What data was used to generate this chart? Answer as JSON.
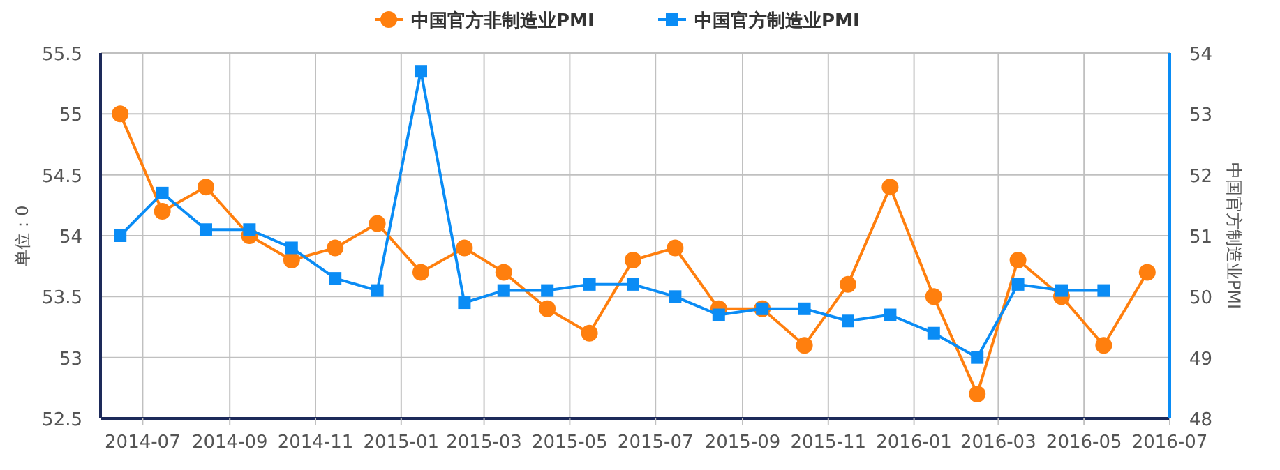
{
  "chart_data": {
    "type": "line",
    "ylabel": "单位：0",
    "y2label": "中国官方制造业PMI",
    "x": [
      "2014-06-15",
      "2014-07-15",
      "2014-08-15",
      "2014-09-15",
      "2014-10-15",
      "2014-11-15",
      "2014-12-15",
      "2015-01-15",
      "2015-02-15",
      "2015-03-15",
      "2015-04-15",
      "2015-05-15",
      "2015-06-15",
      "2015-07-15",
      "2015-08-15",
      "2015-09-15",
      "2015-10-15",
      "2015-11-15",
      "2015-12-15",
      "2016-01-15",
      "2016-02-15",
      "2016-03-15",
      "2016-04-15",
      "2016-05-15",
      "2016-06-15"
    ],
    "xlim": [
      "2014-06",
      "2016-07"
    ],
    "xticks": [
      {
        "value": "2014-07",
        "label": "2014-07"
      },
      {
        "value": "2014-09",
        "label": "2014-09"
      },
      {
        "value": "2014-11",
        "label": "2014-11"
      },
      {
        "value": "2015-01",
        "label": "2015-01"
      },
      {
        "value": "2015-03",
        "label": "2015-03"
      },
      {
        "value": "2015-05",
        "label": "2015-05"
      },
      {
        "value": "2015-07",
        "label": "2015-07"
      },
      {
        "value": "2015-09",
        "label": "2015-09"
      },
      {
        "value": "2015-11",
        "label": "2015-11"
      },
      {
        "value": "2016-01",
        "label": "2016-01"
      },
      {
        "value": "2016-03",
        "label": "2016-03"
      },
      {
        "value": "2016-05",
        "label": "2016-05"
      },
      {
        "value": "2016-07",
        "label": "2016-07"
      }
    ],
    "ylim": [
      52.5,
      55.5
    ],
    "yticks": [
      52.5,
      53,
      53.5,
      54,
      54.5,
      55,
      55.5
    ],
    "y2lim": [
      48,
      54
    ],
    "y2ticks": [
      48,
      49,
      50,
      51,
      52,
      53,
      54
    ],
    "grid": true,
    "legend": "top",
    "series": [
      {
        "name": "中国官方非制造业PMI",
        "color": "#ff7f0e",
        "marker": "circle",
        "values": [
          55.0,
          54.2,
          54.4,
          54.0,
          53.8,
          53.9,
          54.1,
          53.7,
          53.9,
          53.7,
          53.4,
          53.2,
          53.8,
          53.9,
          53.4,
          53.4,
          53.1,
          53.6,
          54.4,
          53.5,
          52.7,
          53.8,
          53.5,
          53.1,
          53.7
        ]
      },
      {
        "name": "中国官方制造业PMI",
        "color": "#0a8cf5",
        "marker": "square",
        "axis": "y2",
        "values": [
          51.0,
          51.7,
          51.1,
          51.1,
          50.8,
          50.3,
          50.1,
          53.7,
          49.9,
          50.1,
          50.1,
          50.2,
          50.2,
          50.0,
          49.7,
          49.8,
          49.8,
          49.6,
          49.7,
          49.4,
          49.0,
          50.2,
          50.1,
          50.1,
          null
        ]
      }
    ]
  }
}
